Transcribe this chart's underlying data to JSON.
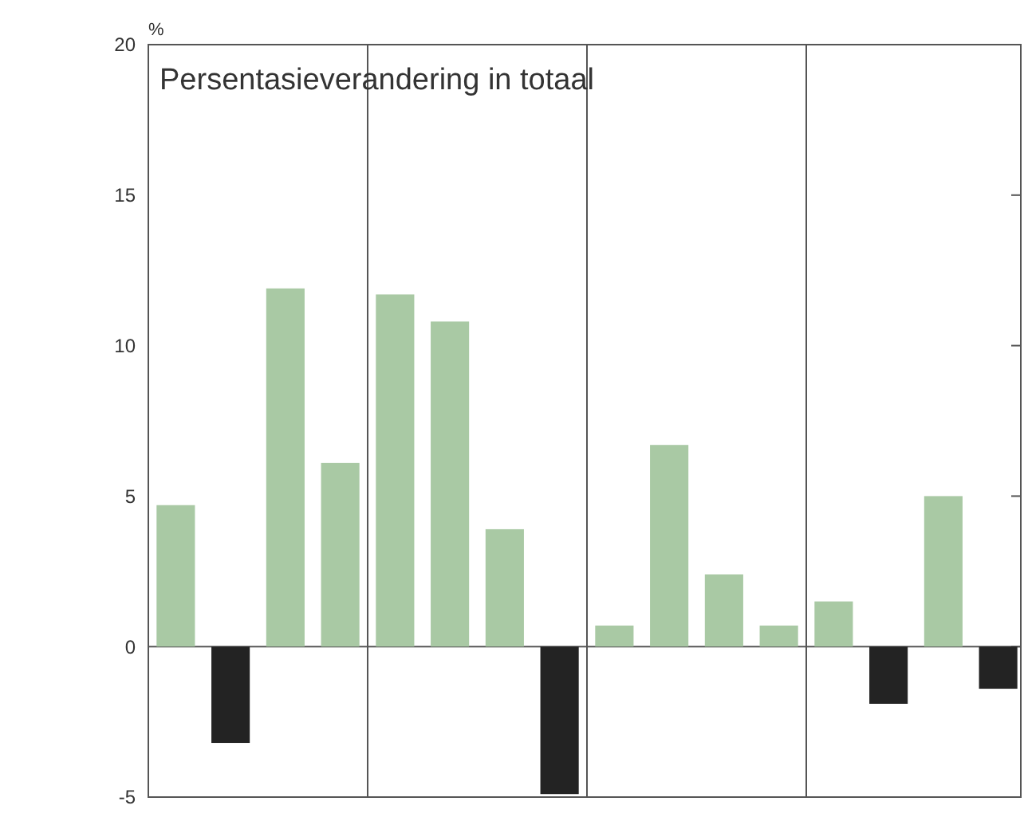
{
  "chart_data": {
    "type": "bar",
    "title": "Persentasieverandering in totaal",
    "ylabel": "%",
    "categories": [
      null,
      null,
      null,
      null,
      null,
      null,
      null,
      null,
      null,
      null,
      null,
      null,
      null,
      null,
      null,
      null
    ],
    "values": [
      4.7,
      -3.2,
      11.9,
      6.1,
      11.7,
      10.8,
      3.9,
      -4.9,
      0.7,
      6.7,
      2.4,
      0.7,
      1.5,
      -1.9,
      5.0,
      -1.4
    ],
    "colors": [
      "#a9c9a4",
      "#232323",
      "#a9c9a4",
      "#a9c9a4",
      "#a9c9a4",
      "#a9c9a4",
      "#a9c9a4",
      "#232323",
      "#a9c9a4",
      "#a9c9a4",
      "#a9c9a4",
      "#a9c9a4",
      "#a9c9a4",
      "#232323",
      "#a9c9a4",
      "#232323"
    ],
    "ylim": [
      -5,
      20
    ],
    "yticks": [
      -5,
      0,
      5,
      10,
      15,
      20
    ],
    "ref_lines": [
      {
        "axis": "y",
        "value": 0,
        "color": "#555555"
      }
    ]
  }
}
